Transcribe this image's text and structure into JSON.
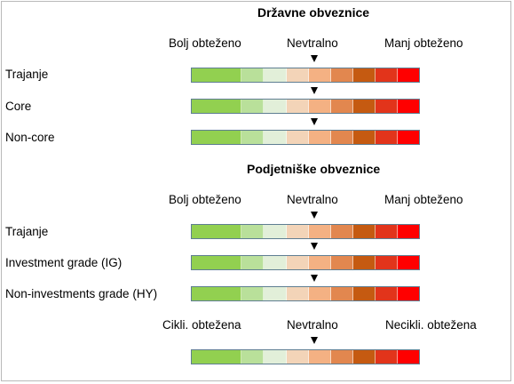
{
  "colors": {
    "scale": [
      "#92d050",
      "#b9e09a",
      "#e2efd9",
      "#f3d4b8",
      "#f4b183",
      "#e2874f",
      "#c55a11",
      "#e2341b",
      "#ff0000"
    ]
  },
  "sections": {
    "government": {
      "title": "Državne obveznice",
      "left": "Bolj obteženo",
      "center": "Nevtralno",
      "right": "Manj obteženo",
      "rows": [
        {
          "label": "Trajanje",
          "position": "Nevtralno"
        },
        {
          "label": "Core",
          "position": "Nevtralno"
        },
        {
          "label": "Non-core",
          "position": "Nevtralno"
        }
      ]
    },
    "corporate": {
      "title": "Podjetniške obveznice",
      "left": "Bolj obteženo",
      "center": "Nevtralno",
      "right": "Manj obteženo",
      "rows": [
        {
          "label": "Trajanje",
          "position": "Nevtralno"
        },
        {
          "label": "Investment grade (IG)",
          "position": "Nevtralno"
        },
        {
          "label": "Non-investments grade (HY)",
          "position": "Nevtralno"
        }
      ]
    },
    "cyclical": {
      "left": "Cikli. obtežena",
      "center": "Nevtralno",
      "right": "Necikli. obtežena",
      "rows": [
        {
          "label": "",
          "position": "Nevtralno"
        }
      ]
    }
  }
}
